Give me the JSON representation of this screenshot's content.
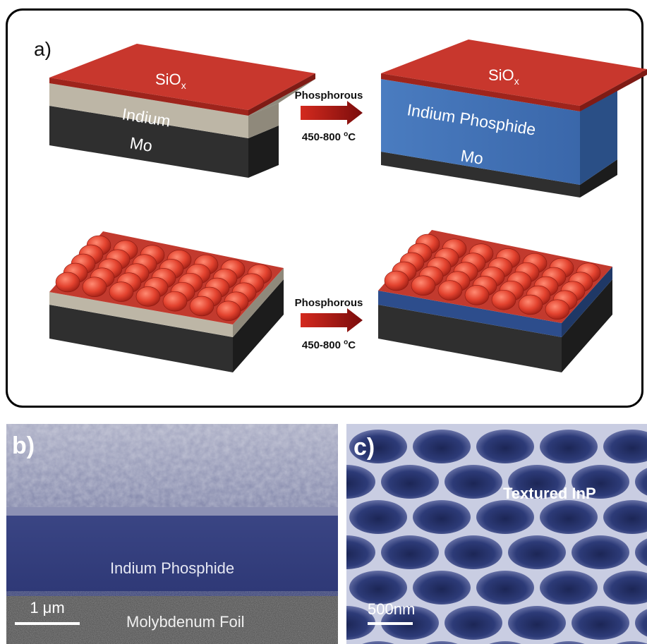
{
  "panel_a": {
    "label": "a)",
    "top_left": {
      "top_layer": "SiO",
      "top_layer_sub": "x",
      "middle_layer": "Indium",
      "bottom_layer": "Mo"
    },
    "top_right": {
      "top_layer": "SiO",
      "top_layer_sub": "x",
      "middle_layer": "Indium Phosphide",
      "bottom_layer": "Mo"
    },
    "arrow_top": {
      "label": "Phosphorous",
      "temperature": "450-800 ",
      "temp_unit_sup": "o",
      "temp_unit": "C"
    },
    "arrow_bottom": {
      "label": "Phosphorous",
      "temperature": "450-800 ",
      "temp_unit_sup": "o",
      "temp_unit": "C"
    }
  },
  "panel_b": {
    "label": "b)",
    "layer_label": "Indium Phosphide",
    "substrate_label": "Molybdenum Foil",
    "scale_bar": "1 μm"
  },
  "panel_c": {
    "label": "c)",
    "title": "Textured InP",
    "scale_bar": "500nm"
  },
  "colors": {
    "sio_red": "#c8372d",
    "indium_gray": "#b7b1a2",
    "mo_dark": "#2e2e2e",
    "inp_blue": "#3f70b4",
    "arrow_red": "#b01515",
    "sem_blue": "#3f4d86"
  }
}
